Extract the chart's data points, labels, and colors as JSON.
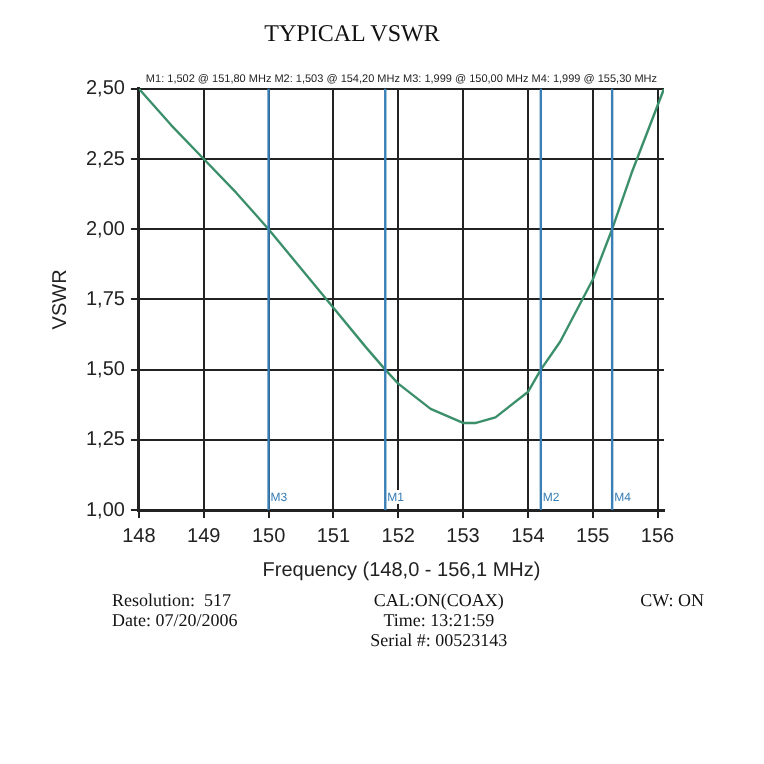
{
  "chart_data": {
    "type": "line",
    "title": "TYPICAL VSWR",
    "xlabel": "Frequency (148,0 - 156,1 MHz)",
    "ylabel": "VSWR",
    "x": [
      148,
      148.5,
      149,
      149.5,
      150,
      150.5,
      151,
      151.5,
      151.8,
      152,
      152.5,
      153,
      153.2,
      153.5,
      154,
      154.2,
      154.5,
      155,
      155.3,
      155.6,
      156.1
    ],
    "series": [
      {
        "color": "#3a8f6a",
        "values": [
          2.5,
          2.37,
          2.25,
          2.13,
          2.0,
          1.86,
          1.72,
          1.58,
          1.5,
          1.45,
          1.36,
          1.31,
          1.31,
          1.33,
          1.42,
          1.5,
          1.6,
          1.82,
          2.0,
          2.2,
          2.5
        ]
      }
    ],
    "xlim": [
      148,
      156.1
    ],
    "xticks": [
      148,
      149,
      150,
      151,
      152,
      153,
      154,
      155,
      156
    ],
    "ylim": [
      1,
      2.5
    ],
    "yticks": [
      {
        "value": 1,
        "label": "1,00"
      },
      {
        "value": 1.25,
        "label": "1,25"
      },
      {
        "value": 1.5,
        "label": "1,50"
      },
      {
        "value": 1.75,
        "label": "1,75"
      },
      {
        "value": 2,
        "label": "2,00"
      },
      {
        "value": 2.25,
        "label": "2,25"
      },
      {
        "value": 2.5,
        "label": "2,50"
      }
    ],
    "grid": true,
    "marker": "none",
    "line_style": "solid",
    "legend": false,
    "ref_lines": [
      {
        "axis": "x",
        "value": 150,
        "label": "M3",
        "color": "#3a7fb5"
      },
      {
        "axis": "x",
        "value": 151.8,
        "label": "M1",
        "color": "#3a7fb5"
      },
      {
        "axis": "x",
        "value": 154.2,
        "label": "M2",
        "color": "#3a7fb5"
      },
      {
        "axis": "x",
        "value": 155.3,
        "label": "M4",
        "color": "#3a7fb5"
      }
    ],
    "annotations": [
      "M1: 1,502 @ 151,80 MHz M2: 1,503 @ 154,20 MHz M3: 1,999 @ 150,00 MHz M4: 1,999 @ 155,30 MHz",
      "Resolution:  517",
      "Date: 07/20/2006",
      "CAL:ON(COAX)",
      "Time: 13:21:59",
      "Serial #: 00523143",
      "CW: ON"
    ]
  }
}
